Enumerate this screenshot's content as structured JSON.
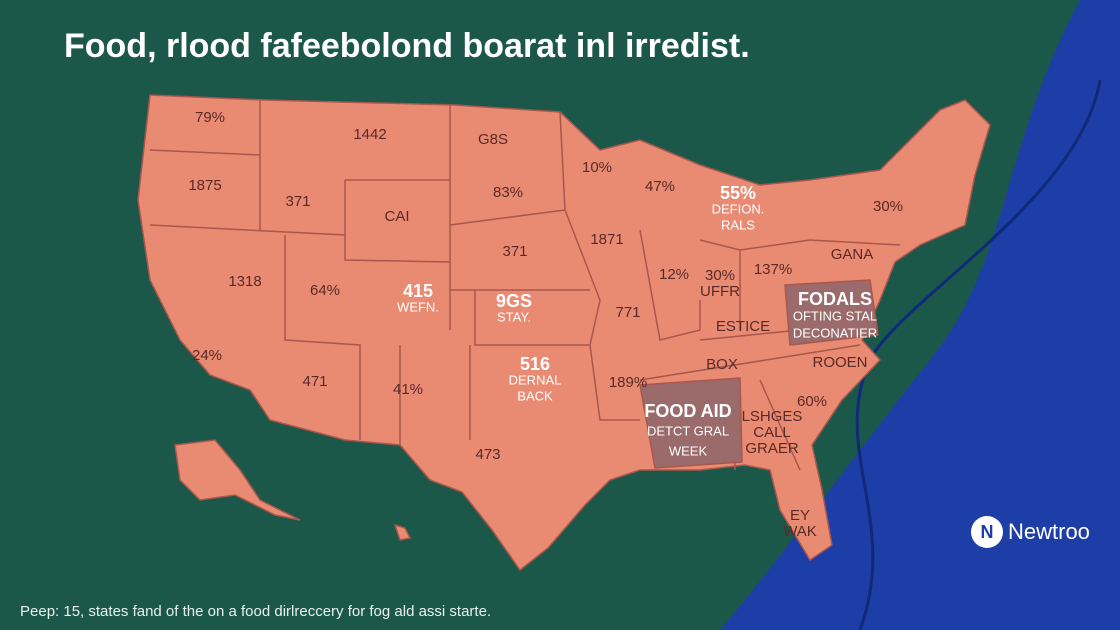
{
  "header": {
    "title": "Food, rlood fafeebolond boarat inl irredist."
  },
  "map": {
    "regions": [
      {
        "lines": [
          "79%"
        ]
      },
      {
        "lines": [
          "1442"
        ]
      },
      {
        "lines": [
          "G8S"
        ]
      },
      {
        "lines": [
          "10%"
        ]
      },
      {
        "lines": [
          "47%"
        ]
      },
      {
        "lines": [
          "55%",
          "DEFION.",
          "RALS"
        ]
      },
      {
        "lines": [
          "30%"
        ]
      },
      {
        "lines": [
          "1875"
        ]
      },
      {
        "lines": [
          "371"
        ]
      },
      {
        "lines": [
          "CAI"
        ]
      },
      {
        "lines": [
          "83%"
        ]
      },
      {
        "lines": [
          "1871"
        ]
      },
      {
        "lines": [
          "371"
        ]
      },
      {
        "lines": [
          "12%"
        ]
      },
      {
        "lines": [
          "30%",
          "UFFR"
        ]
      },
      {
        "lines": [
          "137%"
        ]
      },
      {
        "lines": [
          "GANA"
        ]
      },
      {
        "lines": [
          "1318"
        ]
      },
      {
        "lines": [
          "64%"
        ]
      },
      {
        "lines": [
          "415",
          "WEFN."
        ]
      },
      {
        "lines": [
          "9GS",
          "STAY."
        ]
      },
      {
        "lines": [
          "771"
        ]
      },
      {
        "lines": [
          "FODALS",
          "OFTING STAL",
          "DECONATIER"
        ]
      },
      {
        "lines": [
          "ESTICE"
        ]
      },
      {
        "lines": [
          "24%"
        ]
      },
      {
        "lines": [
          "471"
        ]
      },
      {
        "lines": [
          "41%"
        ]
      },
      {
        "lines": [
          "516",
          "DERNAL",
          "BACK"
        ]
      },
      {
        "lines": [
          "189%"
        ]
      },
      {
        "lines": [
          "BOX"
        ]
      },
      {
        "lines": [
          "ROOEN"
        ]
      },
      {
        "lines": [
          "FOOD AID",
          "DETCT GRAL",
          "WEEK"
        ]
      },
      {
        "lines": [
          "LSHGES",
          "CALL",
          "GRAER"
        ]
      },
      {
        "lines": [
          "60%"
        ]
      },
      {
        "lines": [
          "473"
        ]
      },
      {
        "lines": [
          "EY",
          "WAK"
        ]
      }
    ]
  },
  "footer": {
    "caption": "Peep: 15, states fand of the on a food dirlreccery for fog ald assi starte."
  },
  "brand": {
    "logo": "N",
    "name": "Newtroo"
  }
}
